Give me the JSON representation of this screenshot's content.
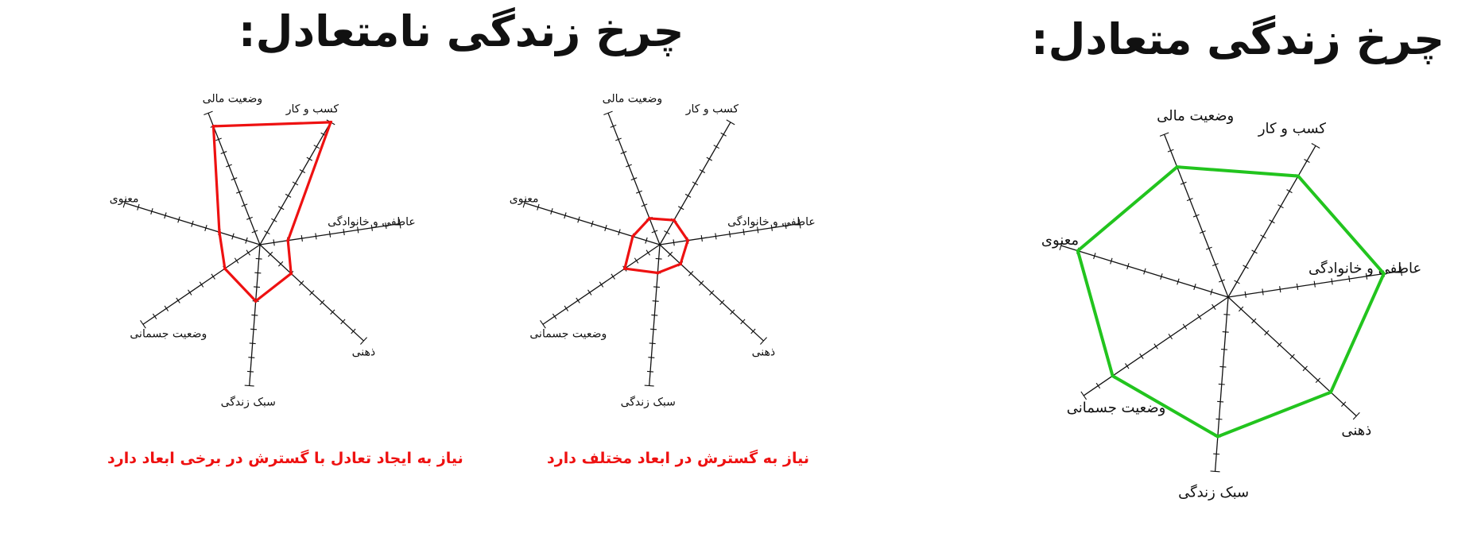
{
  "titles": {
    "balanced": "چرخ زندگی متعادل:",
    "unbalanced": "چرخ زندگی نامتعادل:"
  },
  "notes": {
    "left": "نیاز به ایجاد تعادل با گسترش در برخی ابعاد دارد",
    "middle": "نیاز به گسترش در ابعاد مختلف دارد"
  },
  "colors": {
    "balanced": "#22c41e",
    "unbalanced": "#ee1111",
    "axis": "#111111"
  },
  "chart_data": [
    {
      "type": "radar",
      "title": "چرخ زندگی نامتعادل:",
      "axes": [
        "کسب و کار",
        "عاطفی و خانوادگی",
        "ذهنی",
        "سبک زندگی",
        "وضعیت جسمانی",
        "معنوی",
        "وضعیت مالی"
      ],
      "range": [
        0,
        10
      ],
      "values": [
        10,
        2,
        3,
        4,
        3,
        3,
        9
      ],
      "annotation": "نیاز به ایجاد تعادل با گسترش در برخی ابعاد دارد"
    },
    {
      "type": "radar",
      "title": "چرخ زندگی نامتعادل:",
      "axes": [
        "کسب و کار",
        "عاطفی و خانوادگی",
        "ذهنی",
        "سبک زندگی",
        "وضعیت جسمانی",
        "معنوی",
        "وضعیت مالی"
      ],
      "range": [
        0,
        10
      ],
      "values": [
        2,
        2,
        2,
        2,
        3,
        2,
        2
      ],
      "annotation": "نیاز به گسترش در ابعاد مختلف دارد"
    },
    {
      "type": "radar",
      "title": "چرخ زندگی متعادل:",
      "axes": [
        "کسب و کار",
        "عاطفی و خانوادگی",
        "ذهنی",
        "سبک زندگی",
        "وضعیت جسمانی",
        "معنوی",
        "وضعیت مالی"
      ],
      "range": [
        0,
        10
      ],
      "values": [
        8,
        9,
        8,
        8,
        8,
        9,
        8
      ]
    }
  ]
}
